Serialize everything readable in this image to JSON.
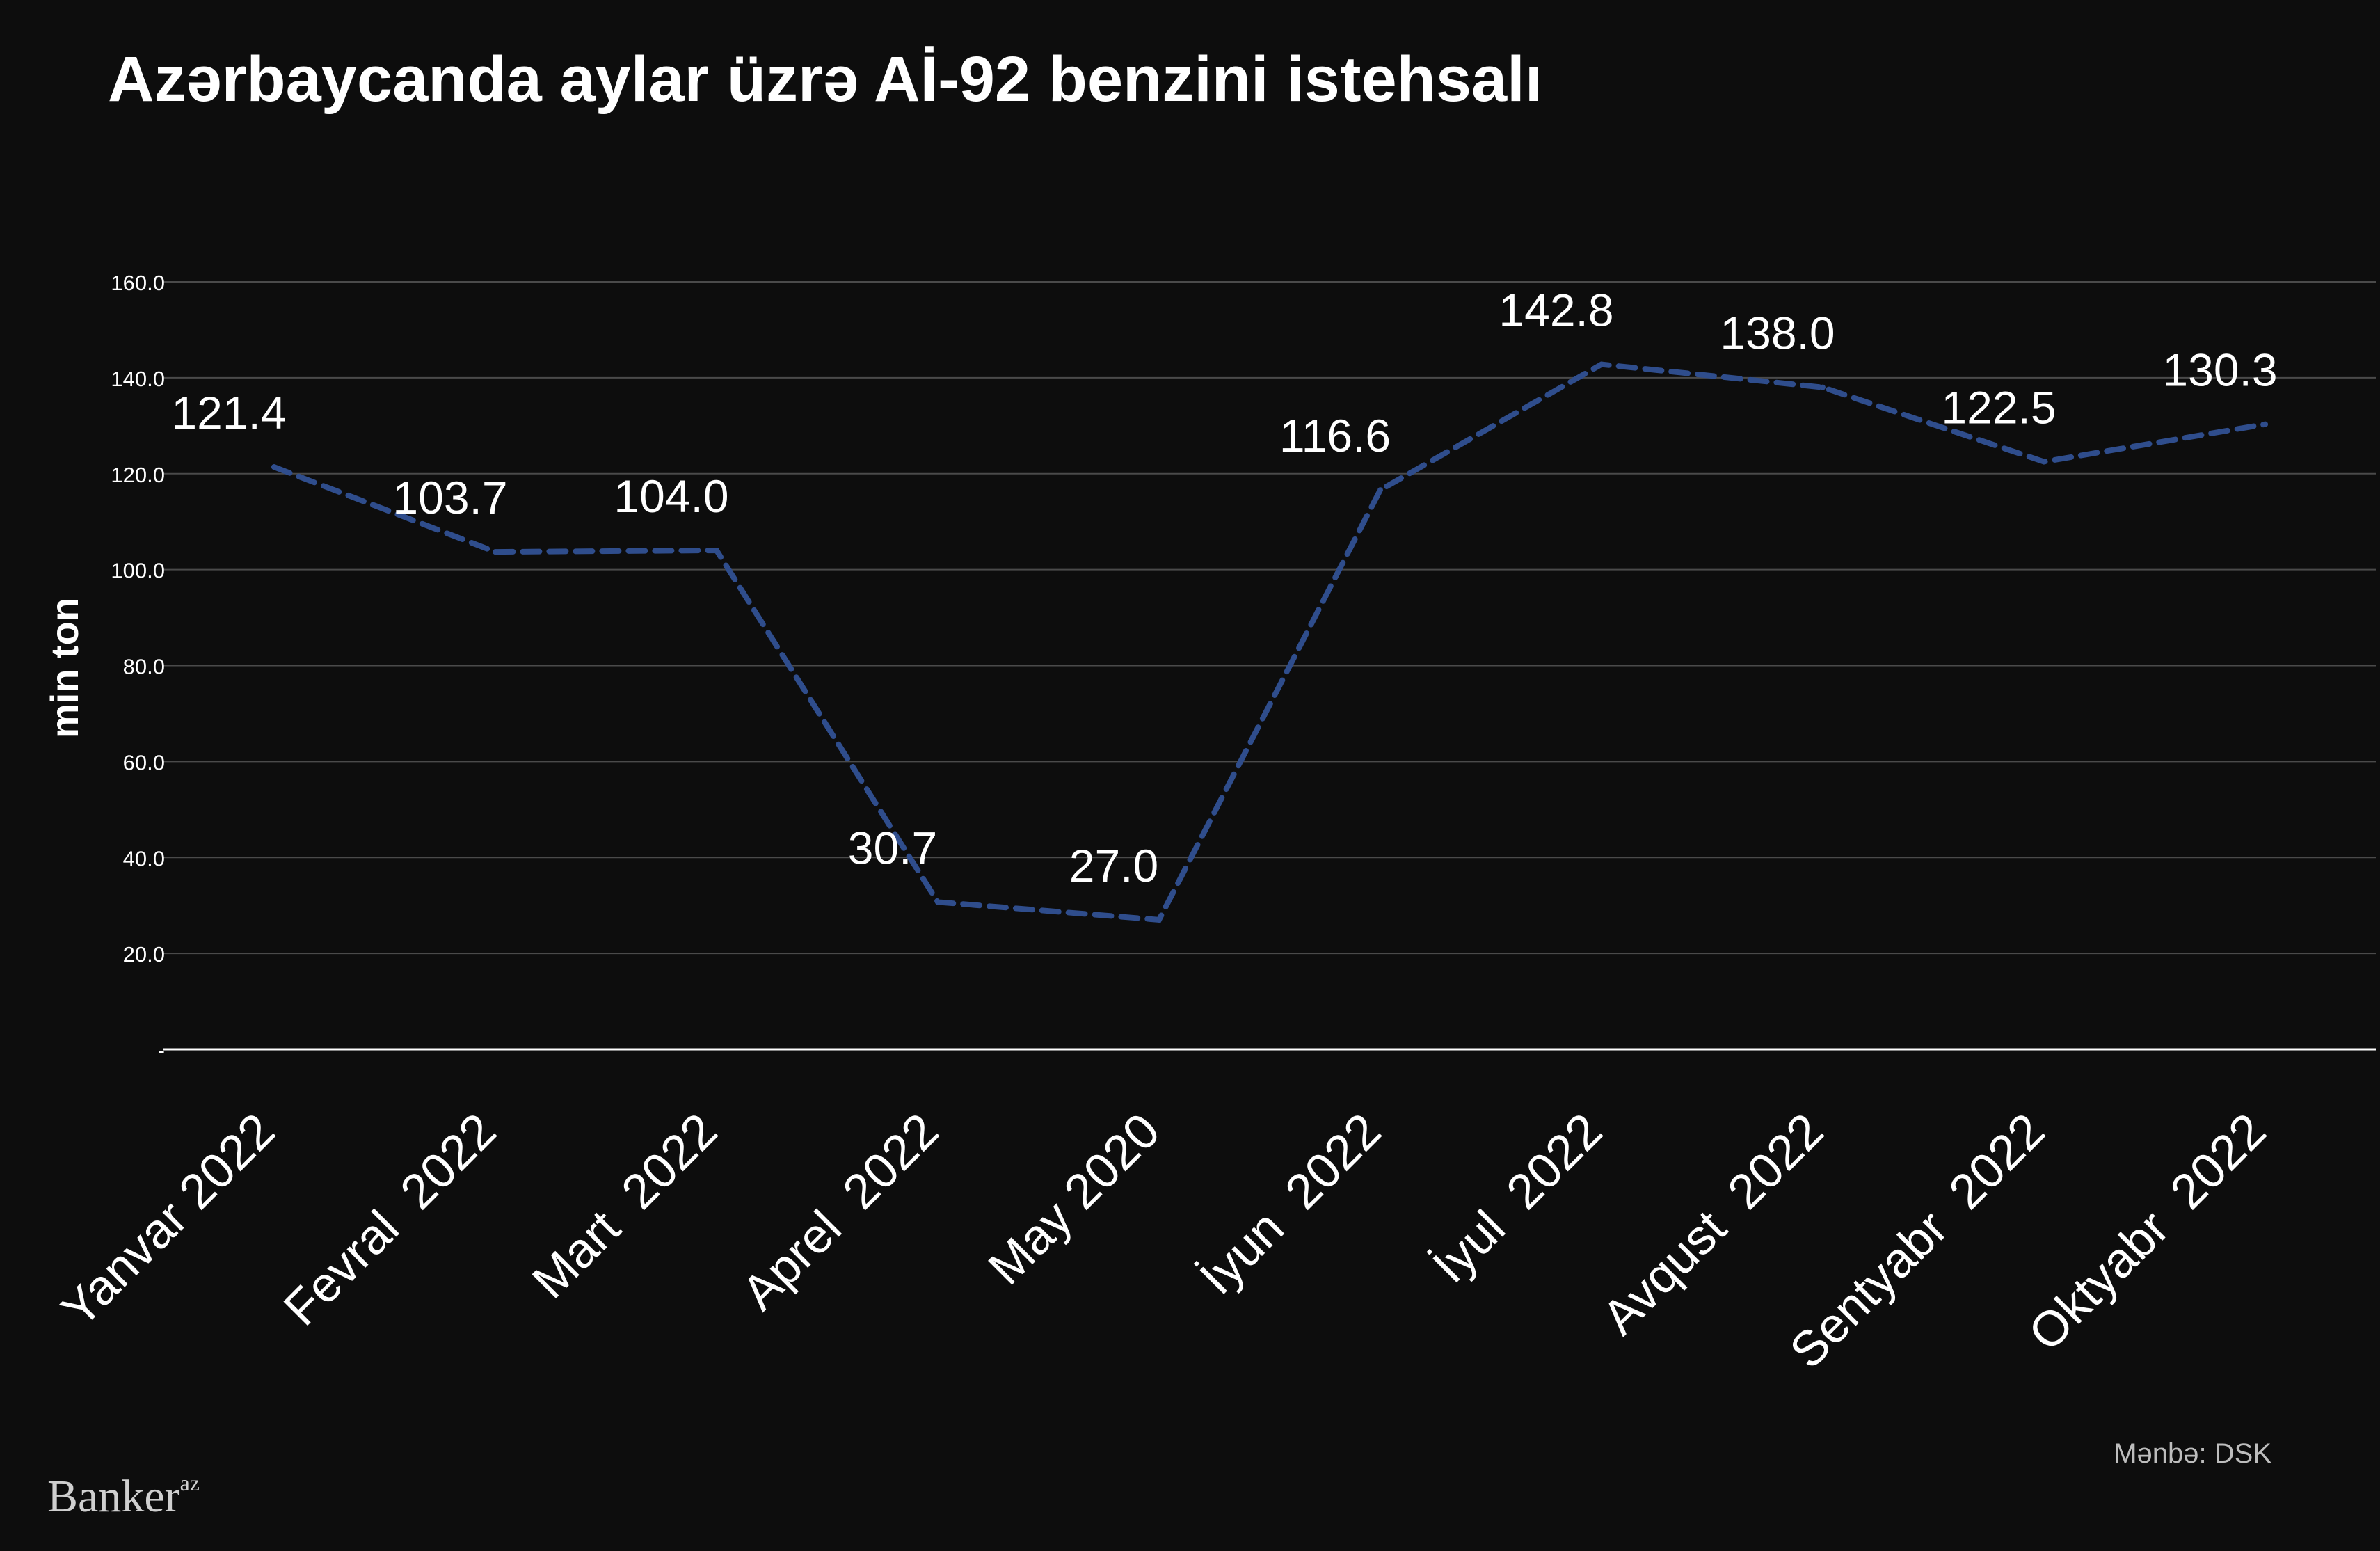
{
  "chart_data": {
    "type": "line",
    "title": "Azərbaycanda aylar üzrə Aİ-92 benzini istehsalı",
    "ylabel": "min ton",
    "xlabel": "",
    "categories": [
      "Yanvar 2022",
      "Fevral  2022",
      "Mart  2022",
      "Aprel  2022",
      "May 2020",
      "İyun  2022",
      "İyul  2022",
      "Avqust  2022",
      "Sentyabr  2022",
      "Oktyabr  2022"
    ],
    "series": [
      {
        "values": [
          121.4,
          103.7,
          104.0,
          30.7,
          27.0,
          116.6,
          142.8,
          138.0,
          122.5,
          130.3
        ]
      }
    ],
    "data_labels": [
      "121.4",
      "103.7",
      "104.0",
      "30.7",
      "27.0",
      "116.6",
      "142.8",
      "138.0",
      "122.5",
      "130.3"
    ],
    "ylim": [
      0,
      160
    ],
    "yticks": [
      0,
      20,
      40,
      60,
      80,
      100,
      120,
      140,
      160
    ],
    "ytick_labels": [
      "-",
      "20.0",
      "40.0",
      "60.0",
      "80.0",
      "100.0",
      "120.0",
      "140.0",
      "160.0"
    ],
    "grid": true,
    "legend": "none",
    "line_style": "dashed",
    "colors": {
      "background": "#0d0d0d",
      "line": "#2f4d8c",
      "grid": "#4a4a4a",
      "text": "#ffffff",
      "axis": "#ffffff",
      "source": "#bdbdbd"
    }
  },
  "source": "Mənbə: DSK",
  "brand": {
    "name": "Banker",
    "suffix": "az"
  }
}
